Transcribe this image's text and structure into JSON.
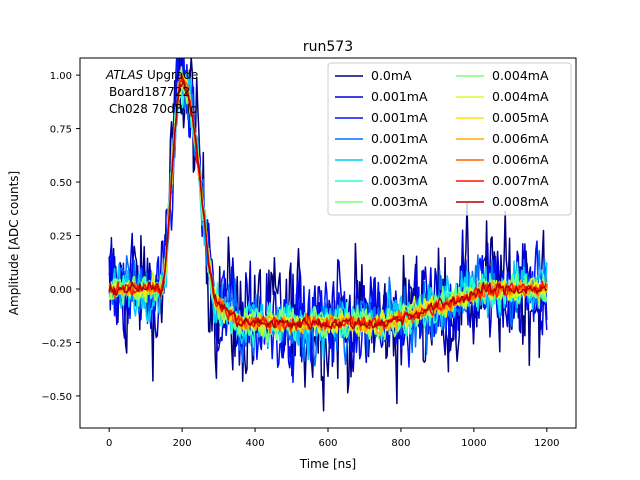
{
  "chart_data": {
    "type": "line",
    "title": "run573",
    "xlabel": "Time [ns]",
    "ylabel": "Amplitude [ADC counts]",
    "xlim": [
      -80,
      1280
    ],
    "ylim": [
      -0.65,
      1.08
    ],
    "xticks": [
      0,
      200,
      400,
      600,
      800,
      1000,
      1200
    ],
    "yticks": [
      -0.5,
      -0.25,
      0.0,
      0.25,
      0.5,
      0.75,
      1.0
    ],
    "xtick_labels": [
      "0",
      "200",
      "400",
      "600",
      "800",
      "1000",
      "1200"
    ],
    "ytick_labels": [
      "−0.50",
      "−0.25",
      "0.00",
      "0.25",
      "0.50",
      "0.75",
      "1.00"
    ],
    "annotation": {
      "line1_italic": "ATLAS",
      "line1_rest": " Upgrade",
      "line2": "Board187722",
      "line3": "Ch028 70dB lo"
    },
    "legend_position": "top-right",
    "legend_columns": 2,
    "waveform_shape": {
      "pulse_peak_time_ns": 200,
      "pulse_peak_amplitude": 0.97,
      "undershoot_amplitude": -0.16,
      "time_range_ns": [
        0,
        1200
      ]
    },
    "series": [
      {
        "name": "0.0mA",
        "color": "#00007f",
        "noise": 0.34
      },
      {
        "name": "0.001mA",
        "color": "#0000d0",
        "noise": 0.26
      },
      {
        "name": "0.001mA",
        "color": "#0010ff",
        "noise": 0.22
      },
      {
        "name": "0.001mA",
        "color": "#0070ff",
        "noise": 0.17
      },
      {
        "name": "0.002mA",
        "color": "#00ccff",
        "noise": 0.13
      },
      {
        "name": "0.003mA",
        "color": "#29ffce",
        "noise": 0.1
      },
      {
        "name": "0.003mA",
        "color": "#7dff7a",
        "noise": 0.08
      },
      {
        "name": "0.004mA",
        "color": "#7dff7a",
        "noise": 0.065
      },
      {
        "name": "0.004mA",
        "color": "#ceff29",
        "noise": 0.055
      },
      {
        "name": "0.005mA",
        "color": "#ffe600",
        "noise": 0.048
      },
      {
        "name": "0.006mA",
        "color": "#ffae00",
        "noise": 0.042
      },
      {
        "name": "0.006mA",
        "color": "#ff6000",
        "noise": 0.038
      },
      {
        "name": "0.007mA",
        "color": "#ff1300",
        "noise": 0.034
      },
      {
        "name": "0.008mA",
        "color": "#b20000",
        "noise": 0.03
      }
    ]
  }
}
